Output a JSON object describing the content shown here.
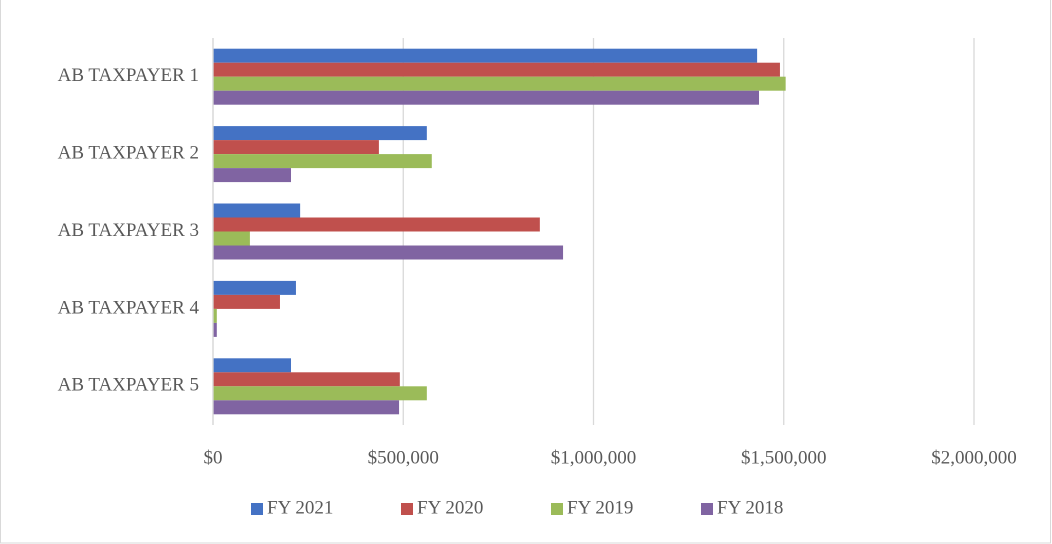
{
  "chart_data": {
    "type": "hbar",
    "categories": [
      "AB TAXPAYER 1",
      "AB TAXPAYER 2",
      "AB TAXPAYER 3",
      "AB TAXPAYER 4",
      "AB TAXPAYER 5"
    ],
    "series": [
      {
        "name": "FY 2021",
        "color": "#4472c4",
        "values": [
          1430000,
          562000,
          229000,
          218000,
          205000
        ]
      },
      {
        "name": "FY 2020",
        "color": "#c0504d",
        "values": [
          1490000,
          436000,
          859000,
          176000,
          491000
        ]
      },
      {
        "name": "FY 2019",
        "color": "#9bbb59",
        "values": [
          1505000,
          575000,
          97000,
          10000,
          562000
        ]
      },
      {
        "name": "FY 2018",
        "color": "#8064a2",
        "values": [
          1435000,
          205000,
          920000,
          10000,
          489000
        ]
      }
    ],
    "xlim": [
      0,
      2000000
    ],
    "xticks": [
      {
        "value": 0,
        "label": "$0"
      },
      {
        "value": 500000,
        "label": "$500,000"
      },
      {
        "value": 1000000,
        "label": "$1,000,000"
      },
      {
        "value": 1500000,
        "label": "$1,500,000"
      },
      {
        "value": 2000000,
        "label": "$2,000,000"
      }
    ],
    "grid": true,
    "legend": "bottom"
  }
}
